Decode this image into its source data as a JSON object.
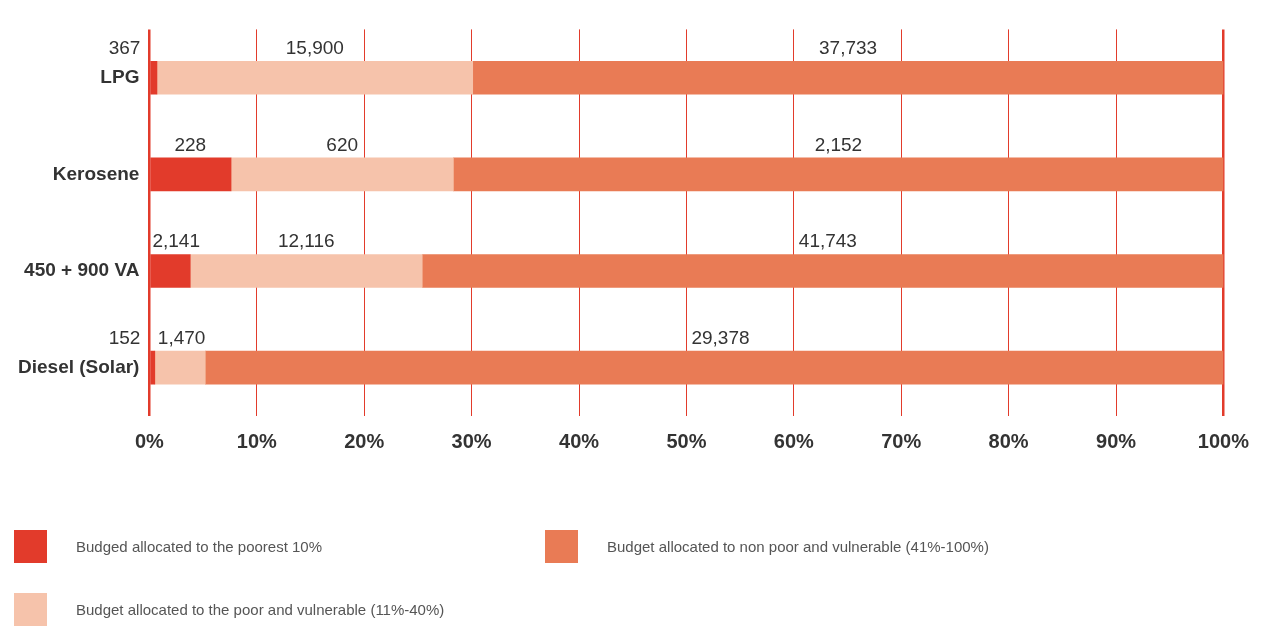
{
  "chart_data": {
    "type": "bar",
    "orientation": "horizontal",
    "stacked": true,
    "categories": [
      "LPG",
      "Kerosene",
      "450 + 900 VA",
      "Diesel (Solar)"
    ],
    "series": [
      {
        "name": "Budged allocated to the poorest 10%",
        "color": "#e23b2b",
        "values": [
          0.7,
          7.6,
          3.8,
          0.5
        ]
      },
      {
        "name": "Budget allocated to the poor and vulnerable (11%-40%)",
        "color": "#f6c3ab",
        "values": [
          29.4,
          20.7,
          21.6,
          4.7
        ]
      },
      {
        "name": "Budget allocated to non poor and vulnerable (41%-100%)",
        "color": "#e97b55",
        "values": [
          69.9,
          71.7,
          74.6,
          94.8
        ]
      }
    ],
    "annotations": [
      "367",
      "15,900",
      "37,733",
      "228",
      "620",
      "2,152",
      "2,141",
      "12,116",
      "41,743",
      "152",
      "1,470",
      "29,378"
    ],
    "xlim": [
      0,
      100
    ],
    "xticks": [
      {
        "value": 0,
        "label": "0%"
      },
      {
        "value": 10,
        "label": "10%"
      },
      {
        "value": 20,
        "label": "20%"
      },
      {
        "value": 30,
        "label": "30%"
      },
      {
        "value": 40,
        "label": "40%"
      },
      {
        "value": 50,
        "label": "50%"
      },
      {
        "value": 60,
        "label": "60%"
      },
      {
        "value": 70,
        "label": "70%"
      },
      {
        "value": 80,
        "label": "80%"
      },
      {
        "value": 90,
        "label": "90%"
      },
      {
        "value": 100,
        "label": "100%"
      }
    ],
    "grid": "x",
    "legend": "bottom"
  }
}
